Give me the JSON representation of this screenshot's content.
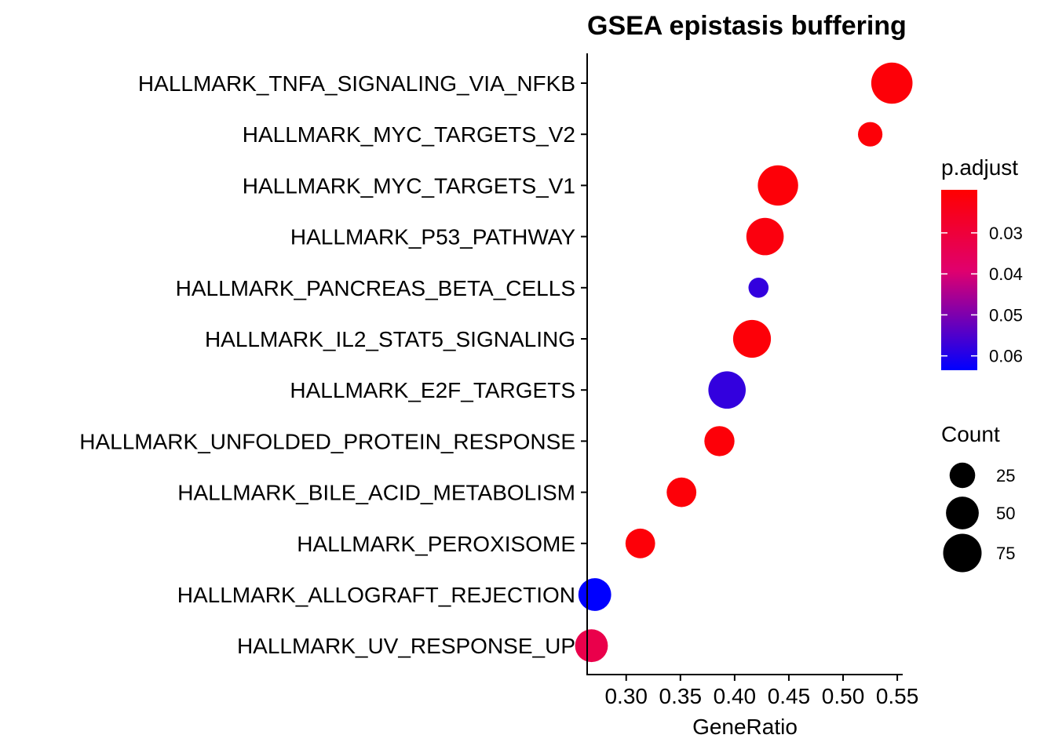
{
  "chart_data": {
    "type": "scatter",
    "title": "GSEA epistasis buffering",
    "xlabel": "GeneRatio",
    "ylabel": "",
    "xlim": [
      0.264,
      0.555
    ],
    "x_ticks": [
      "0.30",
      "0.35",
      "0.40",
      "0.45",
      "0.50",
      "0.55"
    ],
    "categories": [
      "HALLMARK_TNFA_SIGNALING_VIA_NFKB",
      "HALLMARK_MYC_TARGETS_V2",
      "HALLMARK_MYC_TARGETS_V1",
      "HALLMARK_P53_PATHWAY",
      "HALLMARK_PANCREAS_BETA_CELLS",
      "HALLMARK_IL2_STAT5_SIGNALING",
      "HALLMARK_E2F_TARGETS",
      "HALLMARK_UNFOLDED_PROTEIN_RESPONSE",
      "HALLMARK_BILE_ACID_METABOLISM",
      "HALLMARK_PEROXISOME",
      "HALLMARK_ALLOGRAFT_REJECTION",
      "HALLMARK_UV_RESPONSE_UP"
    ],
    "points": [
      {
        "term": "HALLMARK_TNFA_SIGNALING_VIA_NFKB",
        "gene_ratio": 0.545,
        "count": 90,
        "p_adjust": 0.021
      },
      {
        "term": "HALLMARK_MYC_TARGETS_V2",
        "gene_ratio": 0.525,
        "count": 22,
        "p_adjust": 0.021
      },
      {
        "term": "HALLMARK_MYC_TARGETS_V1",
        "gene_ratio": 0.44,
        "count": 85,
        "p_adjust": 0.021
      },
      {
        "term": "HALLMARK_P53_PATHWAY",
        "gene_ratio": 0.428,
        "count": 70,
        "p_adjust": 0.022
      },
      {
        "term": "HALLMARK_PANCREAS_BETA_CELLS",
        "gene_ratio": 0.422,
        "count": 12,
        "p_adjust": 0.058
      },
      {
        "term": "HALLMARK_IL2_STAT5_SIGNALING",
        "gene_ratio": 0.416,
        "count": 72,
        "p_adjust": 0.021
      },
      {
        "term": "HALLMARK_E2F_TARGETS",
        "gene_ratio": 0.393,
        "count": 70,
        "p_adjust": 0.058
      },
      {
        "term": "HALLMARK_UNFOLDED_PROTEIN_RESPONSE",
        "gene_ratio": 0.386,
        "count": 40,
        "p_adjust": 0.021
      },
      {
        "term": "HALLMARK_BILE_ACID_METABOLISM",
        "gene_ratio": 0.351,
        "count": 38,
        "p_adjust": 0.021
      },
      {
        "term": "HALLMARK_PEROXISOME",
        "gene_ratio": 0.313,
        "count": 38,
        "p_adjust": 0.021
      },
      {
        "term": "HALLMARK_ALLOGRAFT_REJECTION",
        "gene_ratio": 0.271,
        "count": 50,
        "p_adjust": 0.065
      },
      {
        "term": "HALLMARK_UV_RESPONSE_UP",
        "gene_ratio": 0.268,
        "count": 50,
        "p_adjust": 0.033
      }
    ],
    "color_legend": {
      "title": "p.adjust",
      "ticks": [
        "0.03",
        "0.04",
        "0.05",
        "0.06"
      ],
      "tick_values": [
        0.03,
        0.04,
        0.05,
        0.06
      ],
      "range": [
        0.0195,
        0.0635
      ],
      "low_color": "#ff0000",
      "mid_color": "#e0006e",
      "high_color": "#0000ff"
    },
    "size_legend": {
      "title": "Count",
      "values": [
        25,
        50,
        75
      ],
      "labels": [
        "25",
        "50",
        "75"
      ]
    },
    "grid": false,
    "legend_position": "right"
  }
}
